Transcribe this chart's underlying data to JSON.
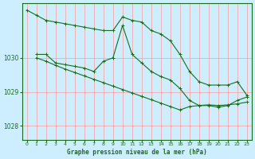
{
  "bg_color": "#cceeff",
  "grid_color": "#ff9999",
  "line_color": "#1a6b1a",
  "title": "Graphe pression niveau de la mer (hPa)",
  "xlim": [
    -0.5,
    23.5
  ],
  "ylim": [
    1027.6,
    1031.6
  ],
  "yticks": [
    1028,
    1029,
    1030
  ],
  "xticks": [
    0,
    1,
    2,
    3,
    4,
    5,
    6,
    7,
    8,
    9,
    10,
    11,
    12,
    13,
    14,
    15,
    16,
    17,
    18,
    19,
    20,
    21,
    22,
    23
  ],
  "series": [
    {
      "x": [
        0,
        1,
        2,
        3,
        4,
        5,
        6,
        7,
        8,
        9,
        10,
        11,
        12,
        13,
        14,
        15,
        16,
        17,
        18,
        19,
        20,
        21,
        22,
        23
      ],
      "y": [
        1031.4,
        1031.25,
        1031.1,
        1031.05,
        1031.0,
        1030.95,
        1030.9,
        1030.85,
        1030.8,
        1030.8,
        1031.2,
        1031.1,
        1031.05,
        1030.8,
        1030.7,
        1030.5,
        1030.1,
        1029.6,
        1029.3,
        1029.2,
        1029.2,
        1029.2,
        1029.3,
        1028.9
      ]
    },
    {
      "x": [
        1,
        2,
        3,
        4,
        5,
        6,
        7,
        8,
        9,
        10,
        11,
        12,
        13,
        14,
        15,
        16,
        17,
        18,
        19,
        20,
        21,
        22,
        23
      ],
      "y": [
        1030.1,
        1030.1,
        1029.85,
        1029.8,
        1029.75,
        1029.7,
        1029.6,
        1029.9,
        1030.0,
        1030.95,
        1030.1,
        1029.85,
        1029.6,
        1029.45,
        1029.35,
        1029.1,
        1028.75,
        1028.6,
        1028.6,
        1028.55,
        1028.6,
        1028.75,
        1028.85
      ]
    },
    {
      "x": [
        1,
        2,
        3,
        4,
        5,
        6,
        7,
        8,
        9,
        10,
        11,
        12,
        13,
        14,
        15,
        16,
        17,
        18,
        19,
        20,
        21,
        22,
        23
      ],
      "y": [
        1030.0,
        1029.9,
        1029.78,
        1029.67,
        1029.57,
        1029.47,
        1029.37,
        1029.27,
        1029.17,
        1029.07,
        1028.97,
        1028.87,
        1028.77,
        1028.67,
        1028.57,
        1028.47,
        1028.57,
        1028.6,
        1028.62,
        1028.6,
        1028.62,
        1028.65,
        1028.7
      ]
    }
  ]
}
